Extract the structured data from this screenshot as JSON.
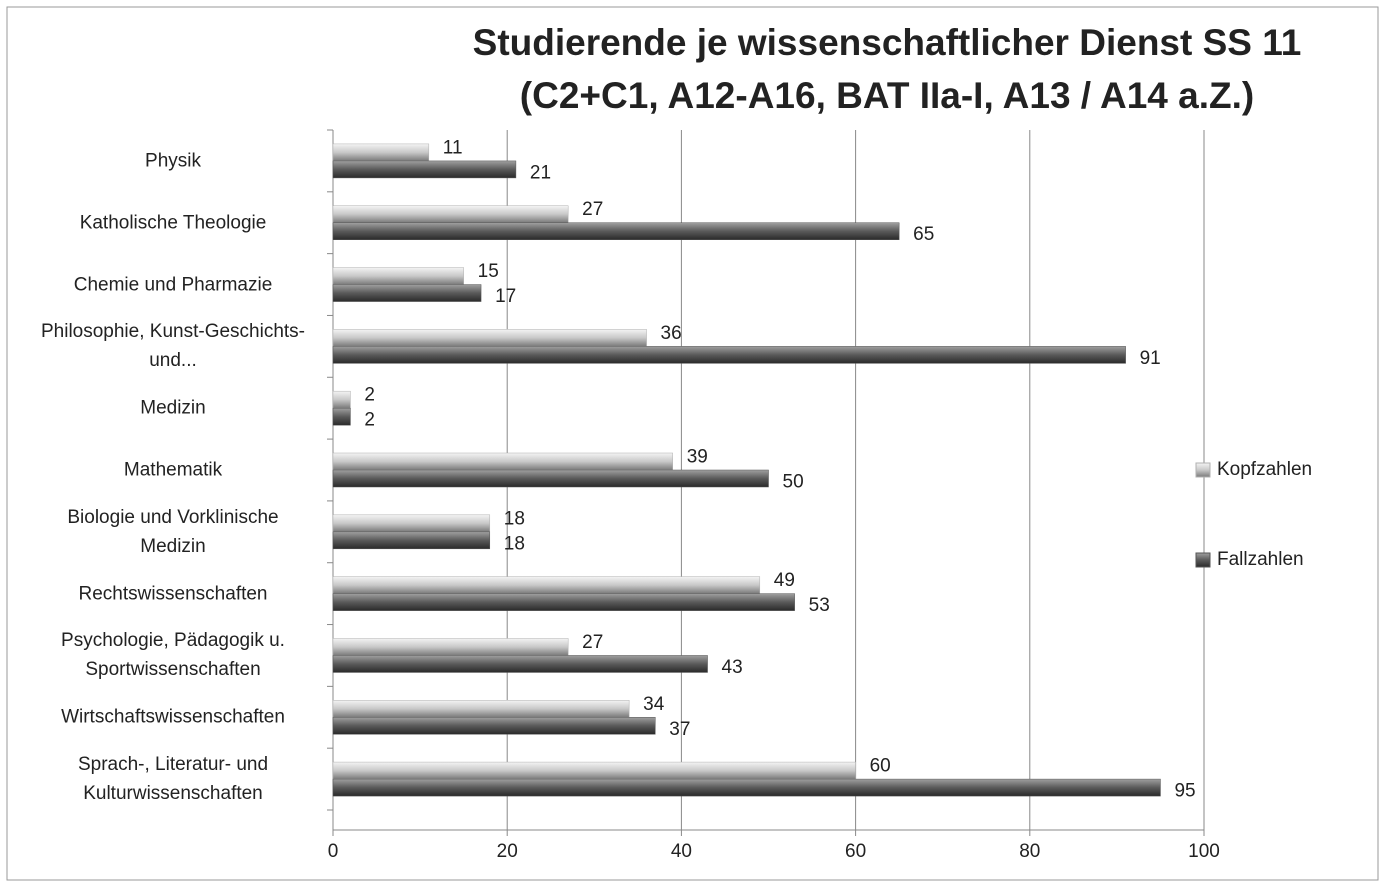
{
  "chart_data": {
    "type": "bar",
    "orientation": "horizontal",
    "title": "Studierende je wissenschaftlicher Dienst SS 11 (C2+C1, A12-A16, BAT IIa-I, A13 / A14 a.Z.)",
    "categories": [
      "Physik",
      "Katholische Theologie",
      "Chemie und Pharmazie",
      "Philosophie, Kunst-Geschichts- und...",
      "Medizin",
      "Mathematik",
      "Biologie und Vorklinische Medizin",
      "Rechtswissenschaften",
      "Psychologie, Pädagogik u. Sportwissenschaften",
      "Wirtschaftswissenschaften",
      "Sprach-, Literatur- und Kulturwissenschaften"
    ],
    "series": [
      {
        "name": "Kopfzahlen",
        "color": "#b0b0b0",
        "values": [
          11,
          27,
          15,
          36,
          2,
          39,
          18,
          49,
          27,
          34,
          60
        ]
      },
      {
        "name": "Fallzahlen",
        "color": "#555555",
        "values": [
          21,
          65,
          17,
          91,
          2,
          50,
          18,
          53,
          43,
          37,
          95
        ]
      }
    ],
    "xlim": [
      0,
      100
    ],
    "xticks": [
      0,
      20,
      40,
      60,
      80,
      100
    ],
    "grid": true,
    "legend": "right"
  }
}
